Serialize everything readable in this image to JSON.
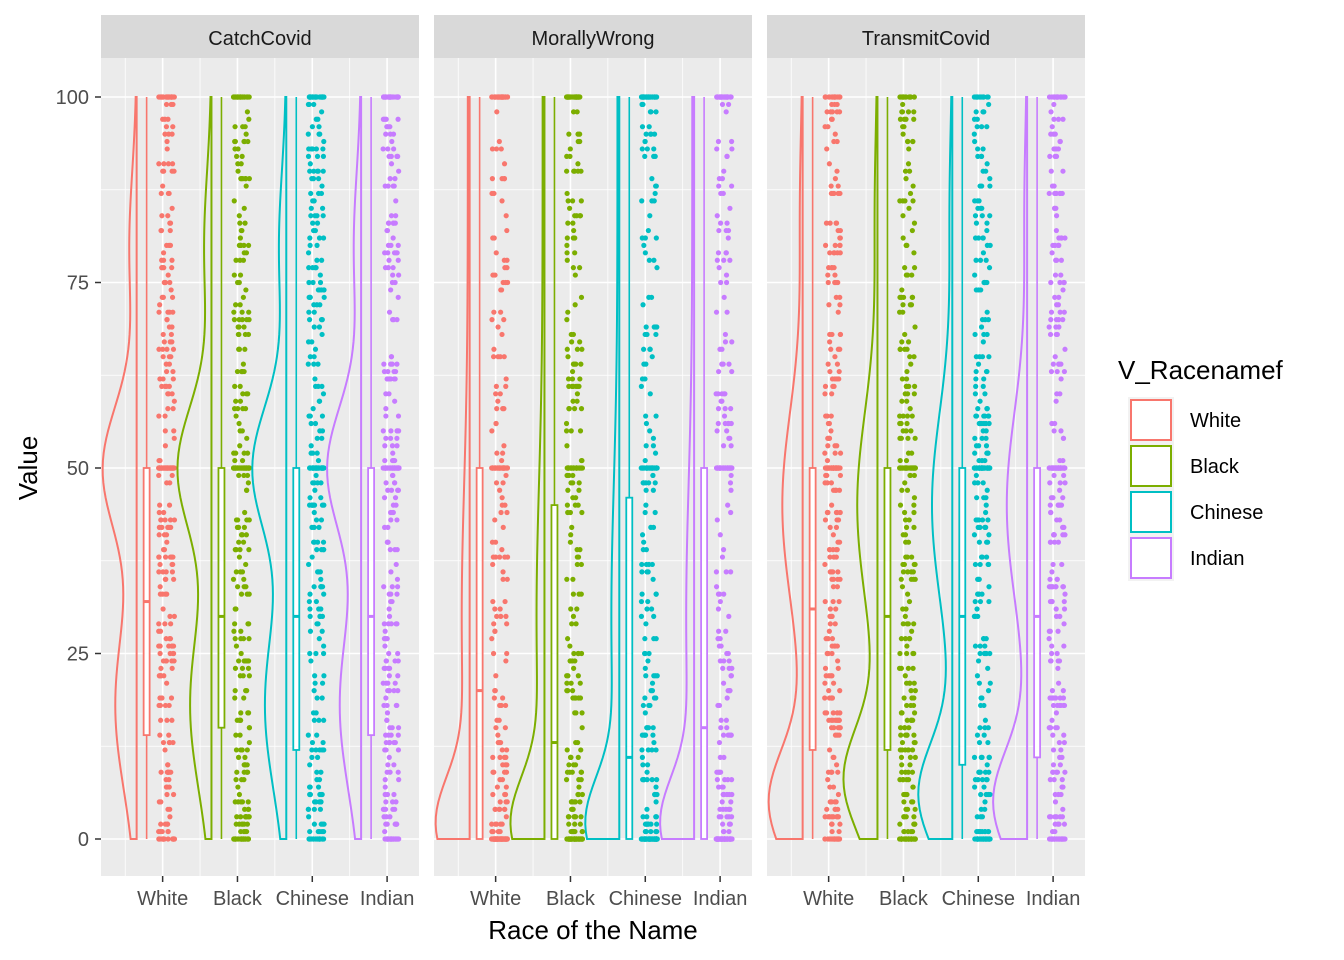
{
  "chart_data": {
    "type": "raincloud",
    "xlabel": "Race of the Name",
    "ylabel": "Value",
    "ylim": [
      0,
      100
    ],
    "yticks": [
      0,
      25,
      50,
      75,
      100
    ],
    "grid": true,
    "legend_position": "right",
    "legend": {
      "title": "V_Racenamef",
      "entries": [
        "White",
        "Black",
        "Chinese",
        "Indian"
      ]
    },
    "categories": [
      "White",
      "Black",
      "Chinese",
      "Indian"
    ],
    "colors": {
      "White": "#F8766D",
      "Black": "#7CAE00",
      "Chinese": "#00BFC4",
      "Indian": "#C77CFF"
    },
    "facets": [
      {
        "title": "CatchCovid",
        "groups": [
          {
            "category": "White",
            "median": 32,
            "q1": 14,
            "q3": 50,
            "violin_peak": 50
          },
          {
            "category": "Black",
            "median": 30,
            "q1": 15,
            "q3": 50,
            "violin_peak": 50
          },
          {
            "category": "Chinese",
            "median": 30,
            "q1": 12,
            "q3": 50,
            "violin_peak": 50
          },
          {
            "category": "Indian",
            "median": 30,
            "q1": 14,
            "q3": 50,
            "violin_peak": 50
          }
        ]
      },
      {
        "title": "MorallyWrong",
        "groups": [
          {
            "category": "White",
            "median": 20,
            "q1": 0,
            "q3": 50,
            "violin_peak": 2
          },
          {
            "category": "Black",
            "median": 13,
            "q1": 0,
            "q3": 45,
            "violin_peak": 2
          },
          {
            "category": "Chinese",
            "median": 11,
            "q1": 0,
            "q3": 46,
            "violin_peak": 2
          },
          {
            "category": "Indian",
            "median": 15,
            "q1": 0,
            "q3": 50,
            "violin_peak": 2
          }
        ]
      },
      {
        "title": "TransmitCovid",
        "groups": [
          {
            "category": "White",
            "median": 31,
            "q1": 12,
            "q3": 50,
            "violin_peak": 5
          },
          {
            "category": "Black",
            "median": 30,
            "q1": 12,
            "q3": 50,
            "violin_peak": 8
          },
          {
            "category": "Chinese",
            "median": 30,
            "q1": 10,
            "q3": 50,
            "violin_peak": 6
          },
          {
            "category": "Indian",
            "median": 30,
            "q1": 11,
            "q3": 50,
            "violin_peak": 5
          }
        ]
      }
    ]
  }
}
